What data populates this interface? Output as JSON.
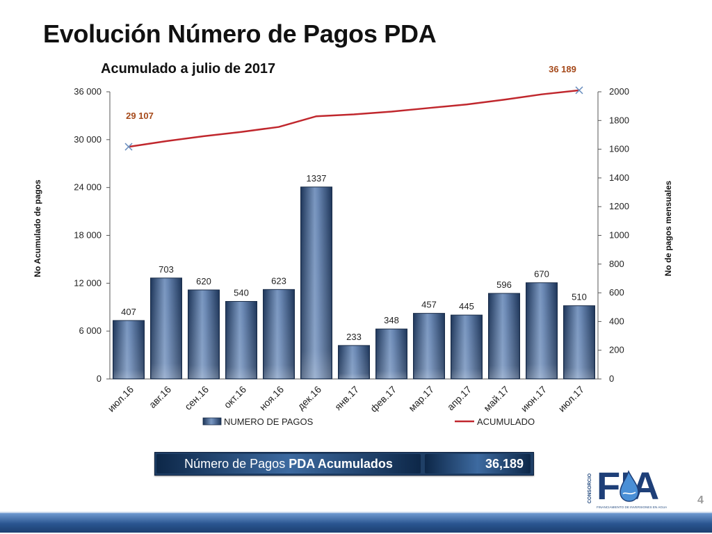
{
  "page": {
    "title": "Evolución Número de Pagos PDA",
    "subtitle": "Acumulado a julio de 2017",
    "page_number": "4"
  },
  "summary": {
    "label_part1": "Número de Pagos ",
    "label_part2": "PDA Acumulados",
    "value": "36,189"
  },
  "logo": {
    "text_vertical": "CONSORCIO",
    "letters": "FIA",
    "tagline": "FINANCIAMIENTO DE INVERSIONES EN AGUA"
  },
  "colors": {
    "bar": "#3c5a86",
    "line": "#c0272d",
    "annotation": "#a5491a",
    "summary_bg": "#1f3f66"
  },
  "chart_data": {
    "type": "bar",
    "categories": [
      "июл.16",
      "авг.16",
      "сен.16",
      "окт.16",
      "ноя.16",
      "дек.16",
      "янв.17",
      "фев.17",
      "мар.17",
      "апр.17",
      "май.17",
      "июн.17",
      "июл.17"
    ],
    "series": [
      {
        "name": "NUMERO DE PAGOS",
        "type": "bar",
        "axis": "right",
        "values": [
          407,
          703,
          620,
          540,
          623,
          1337,
          233,
          348,
          457,
          445,
          596,
          670,
          510
        ],
        "labels": [
          "407",
          "703",
          "620",
          "540",
          "623",
          "1337",
          "233",
          "348",
          "457",
          "445",
          "596",
          "670",
          "510"
        ]
      },
      {
        "name": "ACUMULADO",
        "type": "line",
        "axis": "left",
        "values": [
          29107,
          29810,
          30430,
          30970,
          31593,
          32930,
          33163,
          33511,
          33968,
          34413,
          35009,
          35679,
          36189
        ]
      }
    ],
    "annotations": [
      {
        "text": "29 107",
        "index": 0
      },
      {
        "text": "36 189",
        "index": 12
      }
    ],
    "ylabel": "No Acumulado de pagos",
    "y2label": "No de pagos mensuales",
    "ylim": [
      0,
      36000
    ],
    "y2lim": [
      0,
      2000
    ],
    "yticks": [
      "0",
      "6 000",
      "12 000",
      "18 000",
      "24 000",
      "30 000",
      "36 000"
    ],
    "y2ticks": [
      "0",
      "200",
      "400",
      "600",
      "800",
      "1000",
      "1200",
      "1400",
      "1600",
      "1800",
      "2000"
    ],
    "legend": "bottom",
    "grid": false
  }
}
